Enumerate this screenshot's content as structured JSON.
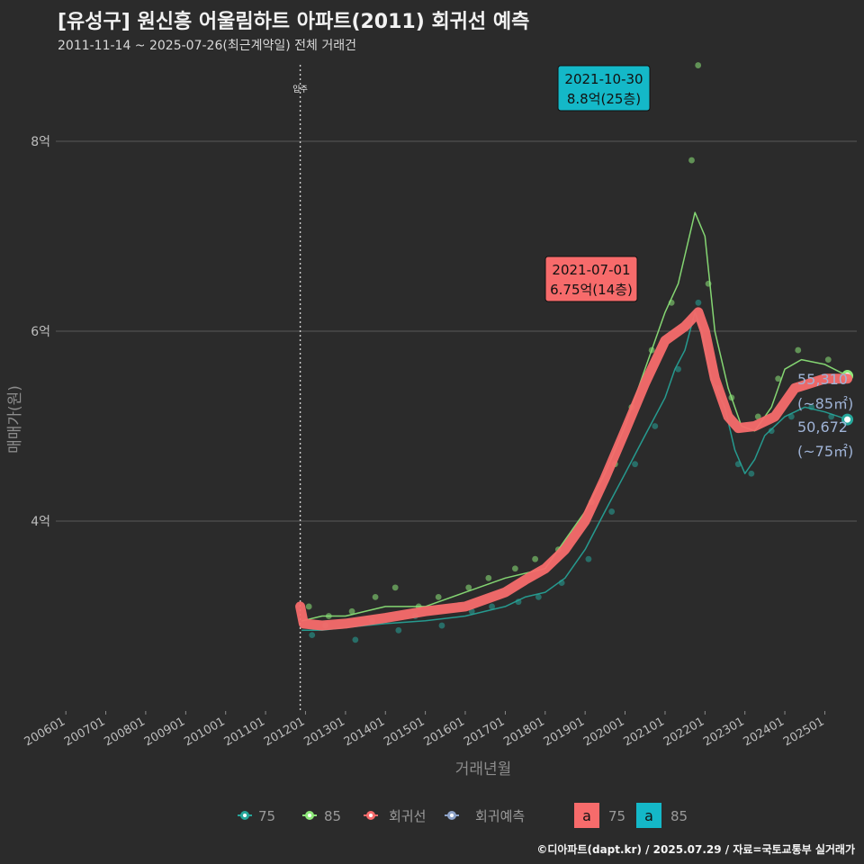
{
  "header": {
    "title": "[유성구] 원신흥 어울림하트 아파트(2011) 회귀선 예측",
    "subtitle": "2011-11-14 ~ 2025-07-26(최근계약일) 전체 거래건"
  },
  "credit": "©디아파트(dapt.kr) / 2025.07.29 / 자료=국토교통부 실거래가",
  "chart_data": {
    "type": "scatter",
    "xlabel": "거래년월",
    "ylabel": "매매가(원)",
    "ylim": [
      2.0,
      8.9
    ],
    "x_range": [
      "2005-10-01",
      "2025-10-20"
    ],
    "x_ticks": [
      "200601",
      "200701",
      "200801",
      "200901",
      "201001",
      "201101",
      "201201",
      "201301",
      "201401",
      "201501",
      "201601",
      "201701",
      "201801",
      "201901",
      "202001",
      "202101",
      "202201",
      "202301",
      "202401",
      "202501"
    ],
    "y_ticks": [
      {
        "value": 4,
        "label": "4억"
      },
      {
        "value": 6,
        "label": "6억"
      },
      {
        "value": 8,
        "label": "8억"
      }
    ],
    "grid": true,
    "move_in": {
      "date": "2011-11-14",
      "label": "입주"
    },
    "series": [
      {
        "name": "75",
        "color": "#26a69a",
        "line": [
          [
            "2011-12-01",
            2.85
          ],
          [
            "2012-06-01",
            2.85
          ],
          [
            "2013-01-01",
            2.88
          ],
          [
            "2014-01-01",
            2.92
          ],
          [
            "2015-01-01",
            2.95
          ],
          [
            "2016-01-01",
            3.0
          ],
          [
            "2017-01-01",
            3.1
          ],
          [
            "2017-07-01",
            3.2
          ],
          [
            "2018-01-01",
            3.25
          ],
          [
            "2018-07-01",
            3.4
          ],
          [
            "2019-01-01",
            3.7
          ],
          [
            "2019-07-01",
            4.1
          ],
          [
            "2020-01-01",
            4.5
          ],
          [
            "2020-07-01",
            4.9
          ],
          [
            "2021-01-01",
            5.3
          ],
          [
            "2021-04-01",
            5.6
          ],
          [
            "2021-07-01",
            5.8
          ],
          [
            "2021-10-01",
            6.2
          ],
          [
            "2021-12-01",
            6.0
          ],
          [
            "2022-03-01",
            5.5
          ],
          [
            "2022-07-01",
            5.2
          ],
          [
            "2022-10-01",
            4.75
          ],
          [
            "2023-01-01",
            4.5
          ],
          [
            "2023-04-01",
            4.65
          ],
          [
            "2023-07-01",
            4.9
          ],
          [
            "2024-01-01",
            5.1
          ],
          [
            "2024-07-01",
            5.2
          ],
          [
            "2025-01-01",
            5.15
          ],
          [
            "2025-07-26",
            5.07
          ]
        ],
        "points": [
          [
            "2012-03-01",
            2.8
          ],
          [
            "2012-07-01",
            2.9
          ],
          [
            "2013-04-01",
            2.75
          ],
          [
            "2013-09-01",
            2.95
          ],
          [
            "2014-05-01",
            2.85
          ],
          [
            "2014-10-01",
            3.0
          ],
          [
            "2015-06-01",
            2.9
          ],
          [
            "2016-03-01",
            3.05
          ],
          [
            "2016-09-01",
            3.1
          ],
          [
            "2017-05-01",
            3.15
          ],
          [
            "2017-11-01",
            3.2
          ],
          [
            "2018-06-01",
            3.35
          ],
          [
            "2019-02-01",
            3.6
          ],
          [
            "2019-09-01",
            4.1
          ],
          [
            "2020-04-01",
            4.6
          ],
          [
            "2020-10-01",
            5.0
          ],
          [
            "2021-05-01",
            5.6
          ],
          [
            "2021-11-01",
            6.3
          ],
          [
            "2022-05-01",
            5.4
          ],
          [
            "2022-11-01",
            4.6
          ],
          [
            "2023-03-01",
            4.5
          ],
          [
            "2023-09-01",
            4.95
          ],
          [
            "2024-03-01",
            5.1
          ],
          [
            "2024-09-01",
            5.2
          ],
          [
            "2025-03-01",
            5.1
          ]
        ]
      },
      {
        "name": "85",
        "color": "#8ee87a",
        "line": [
          [
            "2011-12-01",
            2.95
          ],
          [
            "2012-06-01",
            3.0
          ],
          [
            "2013-01-01",
            3.0
          ],
          [
            "2014-01-01",
            3.1
          ],
          [
            "2015-01-01",
            3.1
          ],
          [
            "2016-01-01",
            3.25
          ],
          [
            "2017-01-01",
            3.4
          ],
          [
            "2018-01-01",
            3.5
          ],
          [
            "2018-07-01",
            3.8
          ],
          [
            "2019-01-01",
            4.1
          ],
          [
            "2019-07-01",
            4.5
          ],
          [
            "2020-01-01",
            5.0
          ],
          [
            "2020-07-01",
            5.6
          ],
          [
            "2021-01-01",
            6.2
          ],
          [
            "2021-05-01",
            6.5
          ],
          [
            "2021-10-01",
            7.25
          ],
          [
            "2022-01-01",
            7.0
          ],
          [
            "2022-04-01",
            6.0
          ],
          [
            "2022-08-01",
            5.4
          ],
          [
            "2022-12-01",
            5.0
          ],
          [
            "2023-04-01",
            4.95
          ],
          [
            "2023-09-01",
            5.2
          ],
          [
            "2024-01-01",
            5.6
          ],
          [
            "2024-06-01",
            5.7
          ],
          [
            "2025-01-01",
            5.65
          ],
          [
            "2025-07-26",
            5.53
          ]
        ],
        "points": [
          [
            "2012-02-01",
            3.1
          ],
          [
            "2012-08-01",
            3.0
          ],
          [
            "2013-03-01",
            3.05
          ],
          [
            "2013-10-01",
            3.2
          ],
          [
            "2014-04-01",
            3.3
          ],
          [
            "2014-11-01",
            3.1
          ],
          [
            "2015-05-01",
            3.2
          ],
          [
            "2016-02-01",
            3.3
          ],
          [
            "2016-08-01",
            3.4
          ],
          [
            "2017-04-01",
            3.5
          ],
          [
            "2017-10-01",
            3.6
          ],
          [
            "2018-05-01",
            3.7
          ],
          [
            "2019-03-01",
            4.2
          ],
          [
            "2019-10-01",
            4.6
          ],
          [
            "2020-03-01",
            5.2
          ],
          [
            "2020-09-01",
            5.8
          ],
          [
            "2021-03-01",
            6.3
          ],
          [
            "2021-10-30",
            8.8
          ],
          [
            "2021-09-01",
            7.8
          ],
          [
            "2022-02-01",
            6.5
          ],
          [
            "2022-09-01",
            5.3
          ],
          [
            "2023-05-01",
            5.1
          ],
          [
            "2023-11-01",
            5.5
          ],
          [
            "2024-05-01",
            5.8
          ],
          [
            "2025-02-01",
            5.7
          ]
        ]
      },
      {
        "name": "회귀선",
        "color": "#f76b6b",
        "line": [
          [
            "2011-11-14",
            3.1
          ],
          [
            "2011-12-15",
            2.92
          ],
          [
            "2012-06-01",
            2.9
          ],
          [
            "2013-01-01",
            2.92
          ],
          [
            "2014-01-01",
            2.98
          ],
          [
            "2015-01-01",
            3.05
          ],
          [
            "2016-01-01",
            3.1
          ],
          [
            "2017-01-01",
            3.25
          ],
          [
            "2017-07-01",
            3.38
          ],
          [
            "2018-01-01",
            3.5
          ],
          [
            "2018-07-01",
            3.7
          ],
          [
            "2019-01-01",
            4.0
          ],
          [
            "2019-07-01",
            4.45
          ],
          [
            "2020-01-01",
            4.95
          ],
          [
            "2020-07-01",
            5.45
          ],
          [
            "2021-01-01",
            5.9
          ],
          [
            "2021-07-01",
            6.05
          ],
          [
            "2021-11-01",
            6.2
          ],
          [
            "2022-01-01",
            6.0
          ],
          [
            "2022-04-01",
            5.5
          ],
          [
            "2022-08-01",
            5.1
          ],
          [
            "2022-11-01",
            4.98
          ],
          [
            "2023-04-01",
            5.0
          ],
          [
            "2023-10-01",
            5.1
          ],
          [
            "2024-04-01",
            5.4
          ],
          [
            "2025-01-01",
            5.5
          ],
          [
            "2025-07-26",
            5.5
          ]
        ]
      },
      {
        "name": "회귀예측",
        "color": "#8ea3c8"
      }
    ],
    "annotations": [
      {
        "date": "2021-10-30",
        "label_date": "2021-10-30",
        "label_value": "8.8억(25층)",
        "color": "#14b8c8"
      },
      {
        "date": "2021-07-01",
        "label_date": "2021-07-01",
        "label_value": "6.75억(14층)",
        "color": "#f76b6b"
      }
    ],
    "end_labels": [
      {
        "value": "55,310",
        "sub": "(~85㎡)",
        "y": 5.53
      },
      {
        "value": "50,672",
        "sub": "(~75㎡)",
        "y": 5.07
      }
    ],
    "legend": {
      "position": "bottom",
      "entries": [
        {
          "label": "75",
          "color": "#26a69a"
        },
        {
          "label": "85",
          "color": "#8ee87a"
        },
        {
          "label": "회귀선",
          "color": "#f76b6b"
        },
        {
          "label": "회귀예측",
          "color": "#8ea3c8"
        }
      ],
      "label_boxes": [
        {
          "glyph": "a",
          "label": "75",
          "color": "#f76b6b"
        },
        {
          "glyph": "a",
          "label": "85",
          "color": "#14b8c8"
        }
      ]
    }
  }
}
